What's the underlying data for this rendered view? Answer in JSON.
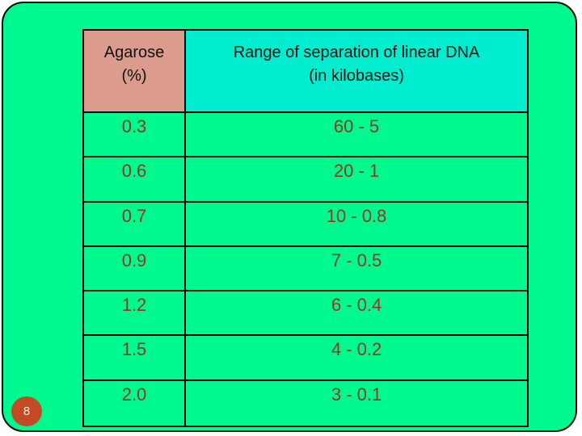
{
  "slide": {
    "background_color": "#00f98e",
    "border_color": "#0a0a0a",
    "page_number": "8",
    "page_number_badge_color": "#c24a24",
    "page_number_text_color": "#f8f0dc"
  },
  "table": {
    "header": {
      "agarose_line1": "Agarose",
      "agarose_line2": "(%)",
      "agarose_bg": "#db9b8d",
      "range_line1": "Range of separation of linear DNA",
      "range_line2": "(in kilobases)",
      "range_bg": "#00eecf",
      "text_color": "#121212"
    },
    "rows": [
      {
        "agarose": "0.3",
        "range": "60 - 5"
      },
      {
        "agarose": "0.6",
        "range": "20 - 1"
      },
      {
        "agarose": "0.7",
        "range": "10 - 0.8"
      },
      {
        "agarose": "0.9",
        "range": "7 - 0.5"
      },
      {
        "agarose": "1.2",
        "range": "6 - 0.4"
      },
      {
        "agarose": "1.5",
        "range": "4 - 0.2"
      },
      {
        "agarose": "2.0",
        "range": "3 - 0.1"
      }
    ],
    "row_text_color": "#8e3820",
    "cell_bg": "#00f98e",
    "grid_color": "#000000"
  }
}
